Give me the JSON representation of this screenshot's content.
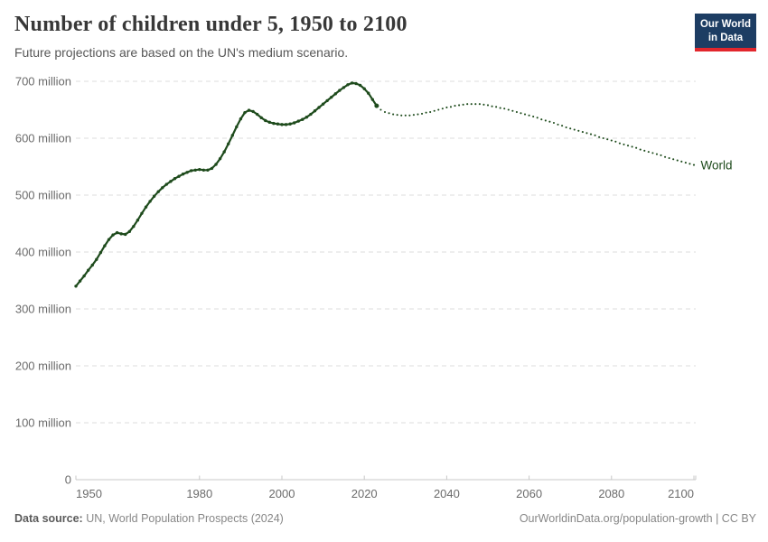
{
  "header": {
    "title": "Number of children under 5, 1950 to 2100",
    "subtitle": "Future projections are based on the UN's medium scenario.",
    "logo": {
      "line1": "Our World",
      "line2": "in Data",
      "bg_color": "#1d3d63",
      "accent_color": "#e2262c"
    }
  },
  "chart_data": {
    "type": "line",
    "title": "Number of children under 5, 1950 to 2100",
    "series_label": "World",
    "line_color": "#1e4b1c",
    "grid_color": "#dcdcdc",
    "axis_color": "#c8c8c8",
    "tick_text_color": "#6b6b6b",
    "grid": true,
    "legend_position": "end-of-line",
    "unit": "million",
    "x_range": [
      1950,
      2100
    ],
    "y_range": [
      0,
      700
    ],
    "x_ticks": [
      1950,
      1980,
      2000,
      2020,
      2040,
      2060,
      2080,
      2100
    ],
    "y_ticks": [
      {
        "value": 700,
        "label": "700 million"
      },
      {
        "value": 600,
        "label": "600 million"
      },
      {
        "value": 500,
        "label": "500 million"
      },
      {
        "value": 400,
        "label": "400 million"
      },
      {
        "value": 300,
        "label": "300 million"
      },
      {
        "value": 200,
        "label": "200 million"
      },
      {
        "value": 100,
        "label": "100 million"
      },
      {
        "value": 0,
        "label": "0"
      }
    ],
    "historical": {
      "style": "solid-with-markers",
      "start_year": 1950,
      "values": [
        340,
        349,
        358,
        368,
        377,
        387,
        399,
        411,
        422,
        430,
        434,
        432,
        431,
        436,
        445,
        456,
        468,
        479,
        489,
        498,
        506,
        513,
        519,
        524,
        529,
        533,
        537,
        540,
        543,
        544,
        545,
        544,
        544,
        547,
        554,
        564,
        576,
        590,
        605,
        620,
        634,
        645,
        649,
        647,
        642,
        636,
        631,
        628,
        626,
        625,
        624,
        624,
        625,
        627,
        630,
        633,
        637,
        642,
        648,
        654,
        660,
        666,
        672,
        678,
        684,
        689,
        694,
        697,
        696,
        693,
        687,
        679,
        668,
        657
      ]
    },
    "projection": {
      "style": "dotted",
      "start_year": 2024,
      "values": [
        650,
        646,
        644,
        642,
        641,
        640,
        640,
        640,
        641,
        642,
        643,
        645,
        646,
        648,
        650,
        652,
        654,
        655,
        657,
        658,
        659,
        660,
        660,
        660,
        660,
        659,
        658,
        656,
        655,
        653,
        652,
        650,
        648,
        646,
        644,
        642,
        640,
        638,
        636,
        633,
        631,
        629,
        627,
        624,
        622,
        619,
        617,
        615,
        613,
        611,
        609,
        607,
        605,
        602,
        600,
        598,
        596,
        594,
        591,
        589,
        587,
        585,
        583,
        580,
        578,
        576,
        574,
        572,
        570,
        567,
        565,
        563,
        561,
        559,
        557,
        555,
        553
      ]
    }
  },
  "footer": {
    "source_label": "Data source:",
    "source_text": " UN, World Population Prospects (2024)",
    "right_text": "OurWorldinData.org/population-growth | CC BY"
  }
}
